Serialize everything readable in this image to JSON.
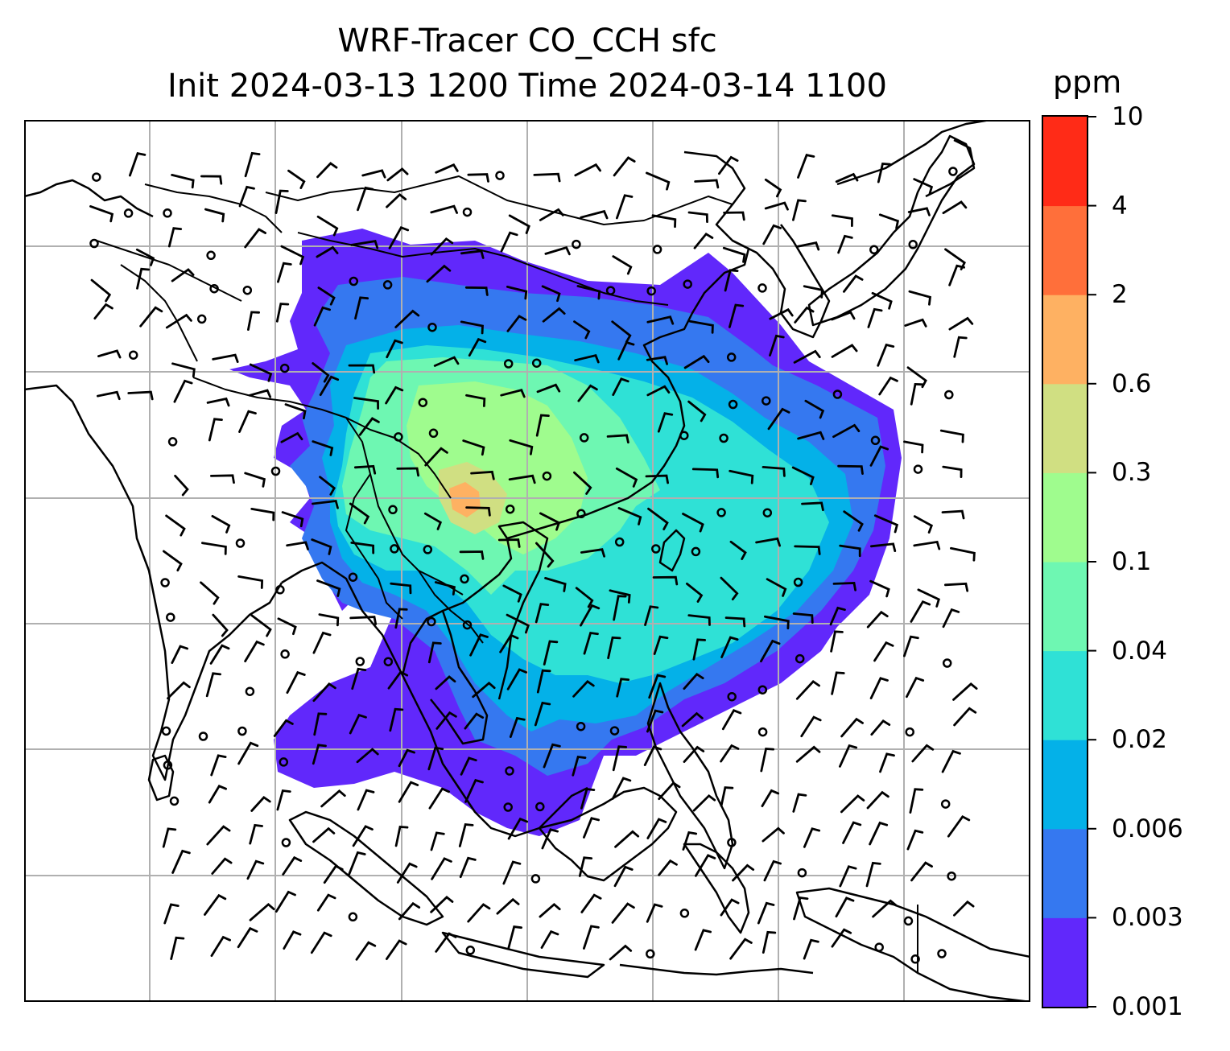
{
  "title": {
    "line1": "WRF-Tracer CO_CCH sfc",
    "line2": "Init 2024-03-13 1200 Time 2024-03-14 1100"
  },
  "colorbar": {
    "unit": "ppm",
    "ticks": [
      "10",
      "4",
      "2",
      "0.6",
      "0.3",
      "0.1",
      "0.04",
      "0.02",
      "0.006",
      "0.003",
      "0.001"
    ],
    "colors_bottom_to_top": [
      "#6128fb",
      "#3578f0",
      "#04b1e8",
      "#2fe1d6",
      "#6ef7b2",
      "#9ffc8e",
      "#d0df82",
      "#feb162",
      "#ff6f3a",
      "#ff2b17"
    ]
  },
  "map": {
    "gridlines": "on",
    "grid_color": "#b0b0b0",
    "coastline_color": "#000000",
    "features": [
      "tracer-concentration-field",
      "wind-barbs",
      "calm-wind-circles",
      "coastlines",
      "country-borders"
    ]
  }
}
